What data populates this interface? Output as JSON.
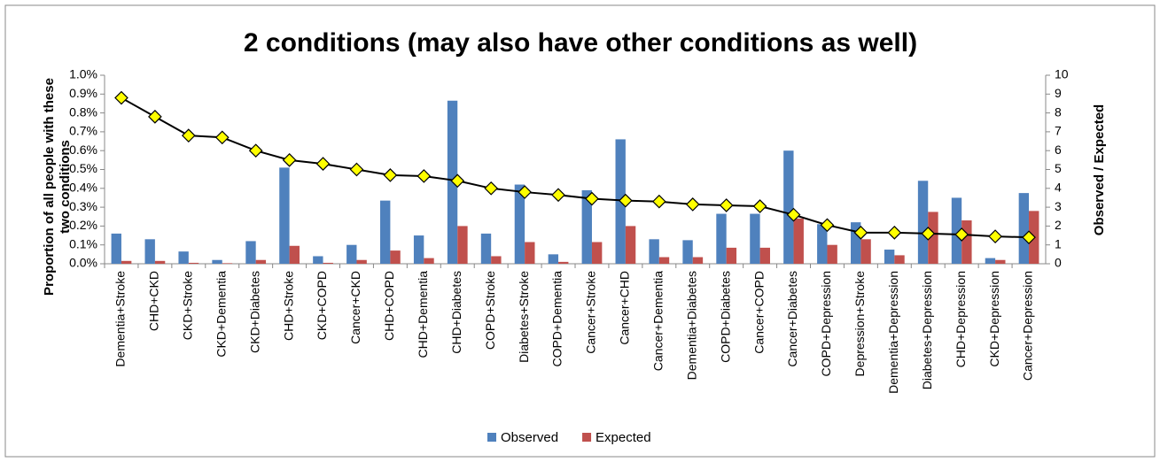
{
  "chart_data": {
    "type": "bar",
    "title": "2 conditions (may also have other conditions as well)",
    "y_label": "Proportion of all people with these two conditions",
    "y2_label": "Observed / Expected",
    "categories": [
      "Dementia+Stroke",
      "CHD+CKD",
      "CKD+Stroke",
      "CKD+Dementia",
      "CKD+Diabetes",
      "CHD+Stroke",
      "CKD+COPD",
      "Cancer+CKD",
      "CHD+COPD",
      "CHD+Dementia",
      "CHD+Diabetes",
      "COPD+Stroke",
      "Diabetes+Stroke",
      "COPD+Dementia",
      "Cancer+Stroke",
      "Cancer+CHD",
      "Cancer+Dementia",
      "Dementia+Diabetes",
      "COPD+Diabetes",
      "Cancer+COPD",
      "Cancer+Diabetes",
      "COPD+Depression",
      "Depression+Stroke",
      "Dementia+Depression",
      "Diabetes+Depression",
      "CHD+Depression",
      "CKD+Depression",
      "Cancer+Depression"
    ],
    "series": [
      {
        "name": "Observed",
        "color": "#4f81bd",
        "values": [
          0.16,
          0.13,
          0.065,
          0.02,
          0.12,
          0.51,
          0.04,
          0.1,
          0.335,
          0.15,
          0.865,
          0.16,
          0.42,
          0.05,
          0.39,
          0.66,
          0.13,
          0.125,
          0.265,
          0.265,
          0.6,
          0.21,
          0.22,
          0.075,
          0.44,
          0.35,
          0.03,
          0.375
        ]
      },
      {
        "name": "Expected",
        "color": "#c0504d",
        "values": [
          0.015,
          0.015,
          0.005,
          0.003,
          0.02,
          0.095,
          0.005,
          0.02,
          0.07,
          0.03,
          0.2,
          0.04,
          0.115,
          0.01,
          0.115,
          0.2,
          0.035,
          0.035,
          0.085,
          0.085,
          0.24,
          0.1,
          0.13,
          0.045,
          0.275,
          0.23,
          0.02,
          0.28
        ]
      },
      {
        "type": "line",
        "axis": "y2",
        "color": "#000000",
        "marker_color": "#ffff00",
        "values": [
          8.8,
          7.8,
          6.8,
          6.7,
          6.0,
          5.5,
          5.3,
          5.0,
          4.7,
          4.65,
          4.4,
          4.0,
          3.8,
          3.65,
          3.45,
          3.35,
          3.3,
          3.15,
          3.1,
          3.05,
          2.6,
          2.05,
          1.65,
          1.65,
          1.6,
          1.55,
          1.45,
          1.4
        ]
      }
    ],
    "ylim": [
      0,
      1.0
    ],
    "yticks": [
      {
        "value": 0,
        "label": "0.0%"
      },
      {
        "value": 0.1,
        "label": "0.1%"
      },
      {
        "value": 0.2,
        "label": "0.2%"
      },
      {
        "value": 0.3,
        "label": "0.3%"
      },
      {
        "value": 0.4,
        "label": "0.4%"
      },
      {
        "value": 0.5,
        "label": "0.5%"
      },
      {
        "value": 0.6,
        "label": "0.6%"
      },
      {
        "value": 0.7,
        "label": "0.7%"
      },
      {
        "value": 0.8,
        "label": "0.8%"
      },
      {
        "value": 0.9,
        "label": "0.9%"
      },
      {
        "value": 1.0,
        "label": "1.0%"
      }
    ],
    "y2lim": [
      0,
      10
    ],
    "y2ticks": [
      0,
      1,
      2,
      3,
      4,
      5,
      6,
      7,
      8,
      9,
      10
    ],
    "grid": false
  }
}
